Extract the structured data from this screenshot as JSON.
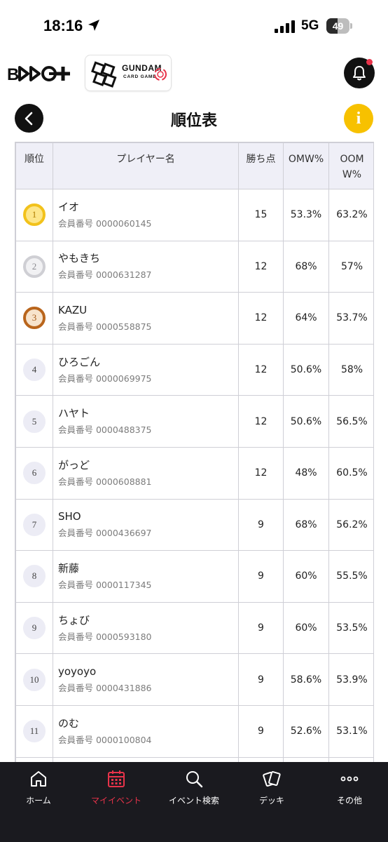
{
  "status": {
    "time": "18:16",
    "network": "5G",
    "battery": "49",
    "battery_level": 0.49
  },
  "header": {
    "brand_logo": "B-TCG+",
    "gundam_title": "GUNDAM",
    "gundam_subtitle": "CARD GAME",
    "bell_icon": "bell-icon"
  },
  "page": {
    "title": "順位表",
    "info_label": "i"
  },
  "table": {
    "headers": {
      "rank": "順位",
      "player": "プレイヤー名",
      "points": "勝ち点",
      "omw": "OMW%",
      "oomw": "OOMW%"
    },
    "rows": [
      {
        "rank": "1",
        "name": "イオ",
        "member": "会員番号 0000060145",
        "points": "15",
        "omw": "53.3%",
        "oomw": "63.2%"
      },
      {
        "rank": "2",
        "name": "やもきち",
        "member": "会員番号 0000631287",
        "points": "12",
        "omw": "68%",
        "oomw": "57%"
      },
      {
        "rank": "3",
        "name": "KAZU",
        "member": "会員番号 0000558875",
        "points": "12",
        "omw": "64%",
        "oomw": "53.7%"
      },
      {
        "rank": "4",
        "name": "ひろごん",
        "member": "会員番号 0000069975",
        "points": "12",
        "omw": "50.6%",
        "oomw": "58%"
      },
      {
        "rank": "5",
        "name": "ハヤト",
        "member": "会員番号 0000488375",
        "points": "12",
        "omw": "50.6%",
        "oomw": "56.5%"
      },
      {
        "rank": "6",
        "name": "がっど",
        "member": "会員番号 0000608881",
        "points": "12",
        "omw": "48%",
        "oomw": "60.5%"
      },
      {
        "rank": "7",
        "name": "SHO",
        "member": "会員番号 0000436697",
        "points": "9",
        "omw": "68%",
        "oomw": "56.2%"
      },
      {
        "rank": "8",
        "name": "新藤",
        "member": "会員番号 0000117345",
        "points": "9",
        "omw": "60%",
        "oomw": "55.5%"
      },
      {
        "rank": "9",
        "name": "ちょび",
        "member": "会員番号 0000593180",
        "points": "9",
        "omw": "60%",
        "oomw": "53.5%"
      },
      {
        "rank": "10",
        "name": "yoyoyo",
        "member": "会員番号 0000431886",
        "points": "9",
        "omw": "58.6%",
        "oomw": "53.9%"
      },
      {
        "rank": "11",
        "name": "のむ",
        "member": "会員番号 0000100804",
        "points": "9",
        "omw": "52.6%",
        "oomw": "53.1%"
      }
    ]
  },
  "nav": {
    "items": [
      {
        "label": "ホーム",
        "icon": "home-icon"
      },
      {
        "label": "マイイベント",
        "icon": "calendar-icon",
        "active": true
      },
      {
        "label": "イベント検索",
        "icon": "search-icon"
      },
      {
        "label": "デッキ",
        "icon": "cards-icon"
      },
      {
        "label": "その他",
        "icon": "more-icon"
      }
    ],
    "active_color": "#e8334a"
  }
}
